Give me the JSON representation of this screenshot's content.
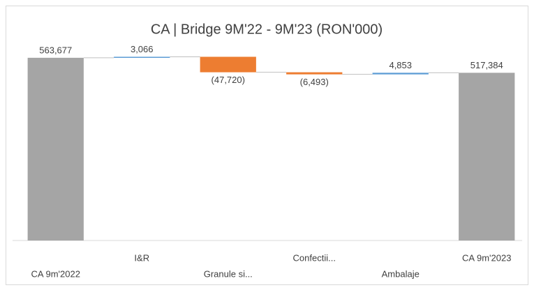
{
  "chart_data": {
    "type": "waterfall",
    "title": "CA | Bridge 9M'22 - 9M'23 (RON'000)",
    "categories": [
      "CA 9m'2022",
      "I&R",
      "Granule si...",
      "Confectii...",
      "Ambalaje",
      "CA 9m'2023"
    ],
    "values": [
      563677,
      3066,
      -47720,
      -6493,
      4853,
      517384
    ],
    "value_labels": [
      "563,677",
      "3,066",
      "(47,720)",
      "(6,493)",
      "4,853",
      "517,384"
    ],
    "totals": [
      true,
      false,
      false,
      false,
      false,
      true
    ],
    "colors": {
      "increase": "#5b9bd5",
      "decrease": "#ed7d31",
      "total": "#a5a5a5"
    },
    "ylim": [
      0,
      600000
    ]
  }
}
